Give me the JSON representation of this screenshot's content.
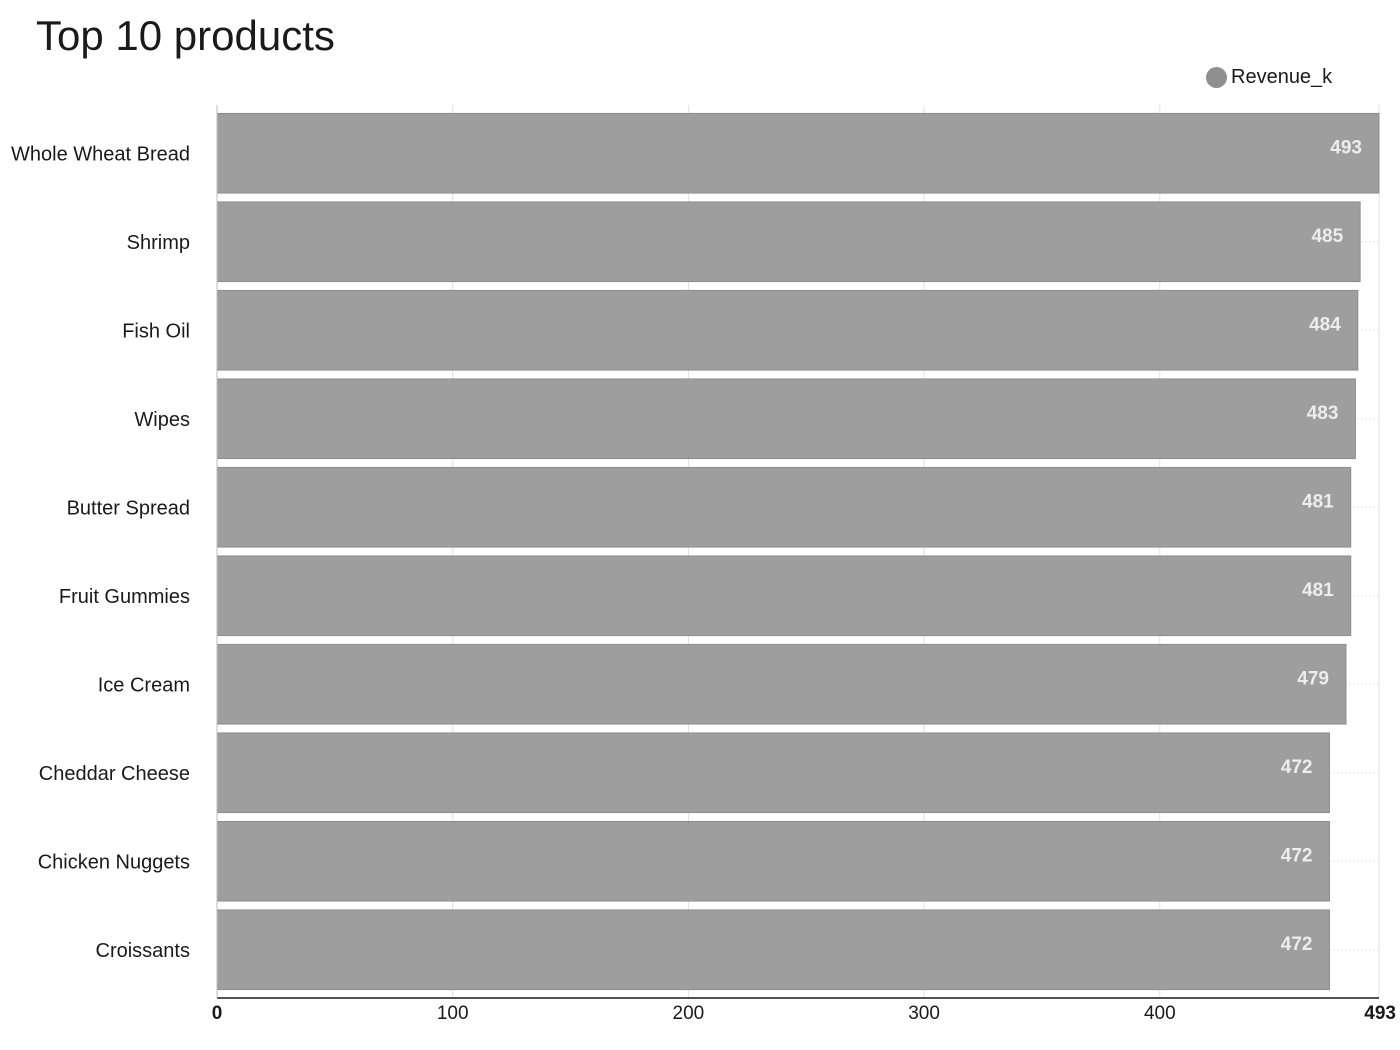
{
  "chart_data": {
    "type": "bar",
    "orientation": "horizontal",
    "title": "Top 10 products",
    "legend": {
      "placement": "top-right"
    },
    "categories": [
      "Whole Wheat Bread",
      "Shrimp",
      "Fish Oil",
      "Wipes",
      "Butter Spread",
      "Fruit Gummies",
      "Ice Cream",
      "Cheddar Cheese",
      "Chicken Nuggets",
      "Croissants"
    ],
    "series": [
      {
        "name": "Revenue_k",
        "color": "#9e9e9e",
        "values": [
          493,
          485,
          484,
          483,
          481,
          481,
          479,
          472,
          472,
          472
        ],
        "labels": [
          "493",
          "485",
          "484",
          "483",
          "481",
          "481",
          "479",
          "472",
          "472",
          "472"
        ]
      }
    ],
    "xlim": [
      0,
      493
    ],
    "xticks": [
      0,
      100,
      200,
      300,
      400,
      493
    ],
    "xtick_labels": [
      "0",
      "100",
      "200",
      "300",
      "400",
      "493"
    ],
    "grid": true,
    "xlabel": "",
    "ylabel": ""
  }
}
